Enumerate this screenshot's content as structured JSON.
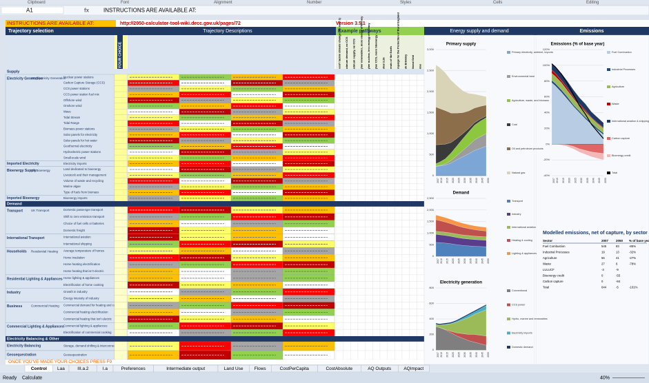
{
  "ribbon": [
    "Clipboard",
    "Font",
    "Alignment",
    "Number",
    "Styles",
    "Cells",
    "Editing"
  ],
  "formula_bar": {
    "name_box": "A1",
    "fx": "fx",
    "content": "INSTRUCTIONS ARE AVAILABLE AT:"
  },
  "sheet": {
    "row1": {
      "instructions": "INSTRUCTIONS ARE AVAILABLE AT:",
      "url": "http://2050-calculator-tool-wiki.decc.gov.uk/pages/72",
      "version": "Version 3.5.1"
    },
    "headers": {
      "selection": "Trajectory selection",
      "descriptions": "Trajectory Descriptions",
      "pathways": "Example pathways",
      "energy": "Energy supply and demand",
      "emissions": "Emissions"
    },
    "choice_header": "YOUR CHOICE",
    "levels": [
      "1 (or A)",
      "2 (or B)",
      "3 (or C)",
      "4 (or D)"
    ],
    "pathways": [
      "Doesn't tackle climate change (All level 1)",
      "Maximum demand, no CCS",
      "Maximum supply, no CCS",
      "Higher renewables, more energy efficiency",
      "Higher nuclear, less energy efficiency",
      "Higher CCS, more bioenergy",
      "Markal 3.26",
      "Friends of the Earth",
      "Campaign for the Protection of Rural England",
      "Mark Brinkley",
      "National Grid",
      "Atkins"
    ],
    "sections": [
      {
        "title": "Supply",
        "groups": [
          {
            "name": "Electricity Generation",
            "sub": "UK Electricity Generation",
            "levers": [
              "Nuclear power stations",
              "Carbon Capture Storage (CCS)",
              "CCS power stations",
              "CCS power station fuel mix",
              "Offshore wind",
              "Onshore wind",
              "Wave",
              "Tidal Stream",
              "Tidal Range",
              "Biomass power stations",
              "Solar panels for electricity",
              "Solar panels for hot water",
              "Geothermal electricity",
              "Hydroelectric power stations",
              "Small-scale wind"
            ]
          },
          {
            "name": "Imported Electricity",
            "sub": null,
            "levers": [
              "Electricity imports"
            ]
          },
          {
            "name": "Bioenergy Supply",
            "sub": "UK Bioenergy",
            "levers": [
              "Land dedicated to bioenergy",
              "Livestock and their management",
              "Volume of waste and recycling",
              "Marine algae",
              "Type of fuels from biomass"
            ]
          },
          {
            "name": "Imported Bioenergy",
            "sub": null,
            "levers": [
              "Bioenergy imports"
            ]
          }
        ]
      },
      {
        "title": "Demand",
        "groups": [
          {
            "name": "Transport",
            "sub": "UK Transport",
            "levers": [
              "Domestic passenger transport",
              "Shift to zero emission transport",
              "Choice of fuel cells or batteries",
              "Domestic freight"
            ]
          },
          {
            "name": "International Transport",
            "sub": null,
            "levers": [
              "International aviation",
              "International shipping"
            ]
          },
          {
            "name": "Households",
            "sub": "Residential Heating",
            "levers": [
              "Average temperature of homes",
              "Home insulation",
              "Home heating electrification",
              "Home heating that isn't electric"
            ]
          },
          {
            "name": "Residential Lighting & Appliances",
            "sub": null,
            "levers": [
              "Home lighting & appliances",
              "Electrification of home cooking"
            ]
          },
          {
            "name": "Industry",
            "sub": null,
            "levers": [
              "Growth in industry",
              "Energy intensity of industry"
            ]
          },
          {
            "name": "Business",
            "sub": "Commercial Heating",
            "levers": [
              "Commercial demand for heating and cooling",
              "Commercial heating electrification",
              "Commercial heating that isn't electric"
            ]
          },
          {
            "name": "Commercial Lighting & Appliances",
            "sub": null,
            "levers": [
              "Commercial lighting & appliances",
              "Electrification of commercial cooking"
            ]
          }
        ]
      },
      {
        "title": "Electricity Balancing & Other",
        "groups": [
          {
            "name": "Electricity Balancing",
            "sub": null,
            "levers": [
              "Storage, demand shifting & interconnection"
            ]
          },
          {
            "name": "Geosequestration",
            "sub": null,
            "levers": [
              "Geosequestration"
            ]
          }
        ]
      }
    ],
    "press": "ONCE YOU'VE MADE YOUR CHOICES PRESS F9"
  },
  "charts": [
    {
      "type": "area",
      "title": "Primary supply",
      "x": [
        2007,
        2010,
        2015,
        2020,
        2025,
        2030,
        2035,
        2040,
        2045,
        2050
      ],
      "ylim": [
        0,
        3000
      ],
      "yticks": [
        0,
        500,
        {
          "value": 1000,
          "label": "1,000"
        },
        {
          "value": 1500,
          "label": "1,500"
        },
        {
          "value": 2000,
          "label": "2,000"
        },
        {
          "value": 2500,
          "label": "2,500"
        },
        {
          "value": 3000,
          "label": "3,000"
        }
      ],
      "series": [
        {
          "name": "Primary electricity, ambient, imports",
          "color": "#7ba6d6",
          "values": [
            220,
            230,
            250,
            300,
            380,
            450,
            520,
            600,
            650,
            700
          ]
        },
        {
          "name": "Environmental heat",
          "color": "#9c9c9c",
          "values": [
            5,
            10,
            30,
            60,
            100,
            150,
            200,
            250,
            280,
            300
          ]
        },
        {
          "name": "Agriculture, waste, and biomass",
          "color": "#8dc63f",
          "values": [
            60,
            80,
            120,
            180,
            230,
            280,
            320,
            350,
            370,
            380
          ]
        },
        {
          "name": "Coal",
          "color": "#3a3a3a",
          "values": [
            450,
            420,
            350,
            250,
            180,
            120,
            80,
            60,
            50,
            40
          ]
        },
        {
          "name": "Oil and petroleum products",
          "color": "#8c6e4a",
          "values": [
            900,
            860,
            800,
            700,
            600,
            500,
            420,
            350,
            300,
            260
          ]
        },
        {
          "name": "Natural gas",
          "color": "#d9d3b8",
          "values": [
            1000,
            980,
            900,
            780,
            650,
            520,
            420,
            330,
            260,
            200
          ]
        }
      ]
    },
    {
      "type": "area",
      "title": "Demand",
      "x": [
        2007,
        2010,
        2015,
        2020,
        2025,
        2030,
        2035,
        2040,
        2045,
        2050
      ],
      "ylim": [
        0,
        2500
      ],
      "yticks": [
        0,
        500,
        {
          "value": 1000,
          "label": "1,000"
        },
        {
          "value": 1500,
          "label": "1,500"
        },
        {
          "value": 2000,
          "label": "2,000"
        },
        {
          "value": 2500,
          "label": "2,500"
        }
      ],
      "series": [
        {
          "name": "Transport",
          "color": "#4f81bd",
          "values": [
            600,
            590,
            570,
            540,
            500,
            470,
            450,
            430,
            420,
            410
          ]
        },
        {
          "name": "Industry",
          "color": "#5a3c8c",
          "values": [
            350,
            340,
            330,
            320,
            310,
            300,
            295,
            290,
            285,
            280
          ]
        },
        {
          "name": "International aviation",
          "color": "#9bbb59",
          "values": [
            130,
            135,
            140,
            145,
            150,
            150,
            150,
            150,
            150,
            150
          ]
        },
        {
          "name": "Heating & cooling",
          "color": "#c0504d",
          "values": [
            500,
            480,
            440,
            400,
            360,
            330,
            300,
            280,
            260,
            250
          ]
        },
        {
          "name": "Lighting & appliances",
          "color": "#f79646",
          "values": [
            200,
            195,
            190,
            185,
            180,
            175,
            170,
            165,
            160,
            160
          ]
        }
      ]
    },
    {
      "type": "area",
      "title": "Electricity generation",
      "x": [
        2007,
        2010,
        2015,
        2020,
        2025,
        2030,
        2035,
        2040,
        2045,
        2050
      ],
      "ylim": [
        0,
        800
      ],
      "yticks": [
        0,
        200,
        400,
        600,
        800
      ],
      "series": [
        {
          "name": "Conventional",
          "color": "#7f7f7f",
          "values": [
            300,
            290,
            260,
            220,
            180,
            150,
            120,
            100,
            80,
            60
          ]
        },
        {
          "name": "CCS power",
          "color": "#c0504d",
          "values": [
            0,
            0,
            5,
            20,
            40,
            60,
            80,
            100,
            110,
            120
          ]
        },
        {
          "name": "Hydro, marine and renewables",
          "color": "#9bbb59",
          "values": [
            20,
            30,
            60,
            100,
            140,
            180,
            220,
            260,
            300,
            340
          ]
        },
        {
          "name": "Electricity imports",
          "color": "#4bacc6",
          "values": [
            10,
            10,
            15,
            20,
            25,
            30,
            35,
            40,
            45,
            50
          ]
        },
        {
          "name": "Domestic demand",
          "color": "#1f3864",
          "kind": "line",
          "values": [
            340,
            330,
            340,
            350,
            380,
            420,
            460,
            500,
            540,
            580
          ]
        }
      ]
    },
    {
      "type": "area",
      "title": "Emissions (% of base year)",
      "x": [
        2007,
        2010,
        2015,
        2020,
        2025,
        2030,
        2035,
        2040,
        2045,
        2050
      ],
      "ylim": [
        -40,
        120
      ],
      "yticks": [
        {
          "value": -40,
          "label": "-40%"
        },
        {
          "value": -20,
          "label": "-20%"
        },
        {
          "value": 0,
          "label": "0%"
        },
        {
          "value": 20,
          "label": "20%"
        },
        {
          "value": 40,
          "label": "40%"
        },
        {
          "value": 60,
          "label": "60%"
        },
        {
          "value": 80,
          "label": "80%"
        },
        {
          "value": 100,
          "label": "100%"
        },
        {
          "value": 120,
          "label": "120%"
        }
      ],
      "series": [
        {
          "name": "Fuel Combustion",
          "color": "#b8cce4",
          "values": [
            78,
            74,
            66,
            57,
            48,
            40,
            32,
            25,
            18,
            12
          ]
        },
        {
          "name": "Industrial Processes",
          "color": "#1f497d",
          "values": [
            3,
            3,
            3,
            3,
            2,
            2,
            2,
            2,
            2,
            2
          ]
        },
        {
          "name": "Agriculture",
          "color": "#9bbb59",
          "values": [
            9,
            9,
            9,
            8,
            8,
            7,
            7,
            6,
            6,
            6
          ]
        },
        {
          "name": "Waste",
          "color": "#c00000",
          "values": [
            4,
            4,
            3,
            3,
            2,
            2,
            2,
            1,
            1,
            1
          ]
        },
        {
          "name": "International aviation & shipping",
          "color": "#203864",
          "values": [
            8,
            8,
            9,
            9,
            9,
            8,
            8,
            7,
            7,
            6
          ]
        },
        {
          "name": "Carbon capture",
          "color": "#e06666",
          "values": [
            0,
            0,
            0,
            -1,
            -3,
            -6,
            -8,
            -10,
            -11,
            -12
          ]
        },
        {
          "name": "Bioenergy credit",
          "color": "#f4b6b6",
          "values": [
            0,
            0,
            -1,
            -2,
            -3,
            -4,
            -5,
            -6,
            -7,
            -8
          ]
        },
        {
          "name": "Total",
          "color": "#000000",
          "kind": "line",
          "values": [
            102,
            98,
            89,
            77,
            63,
            49,
            38,
            25,
            16,
            7
          ]
        }
      ]
    }
  ],
  "emissions_table": {
    "title": "Modelled emissions, net of capture, by sector",
    "columns": [
      "Sector",
      "2007",
      "2050",
      "% of base year"
    ],
    "rows": [
      [
        "Fuel Combustion",
        "545",
        "83",
        "-85%"
      ],
      [
        "Industrial Processes",
        "19",
        "13",
        "-32%"
      ],
      [
        "Agriculture",
        "56",
        "41",
        "-27%"
      ],
      [
        "Waste",
        "27",
        "6",
        "-78%"
      ],
      [
        "LULUCF",
        "-3",
        "-9",
        ""
      ],
      [
        "Bioenergy credit",
        "0",
        "-55",
        ""
      ],
      [
        "Carbon capture",
        "0",
        "-84",
        ""
      ],
      [
        "Total",
        "644",
        "-5",
        "-101%"
      ]
    ]
  },
  "tabs": [
    "Control",
    "Laa",
    "III.a.2",
    "I.a",
    "Preferences",
    "Intermediate output",
    "Land Use",
    "Flows",
    "CostPerCapita",
    "CostAbsolute",
    "AQ Outputs",
    "AQImpact"
  ],
  "status": {
    "ready": "Ready",
    "calculate": "Calculate",
    "zoom": "40%"
  }
}
